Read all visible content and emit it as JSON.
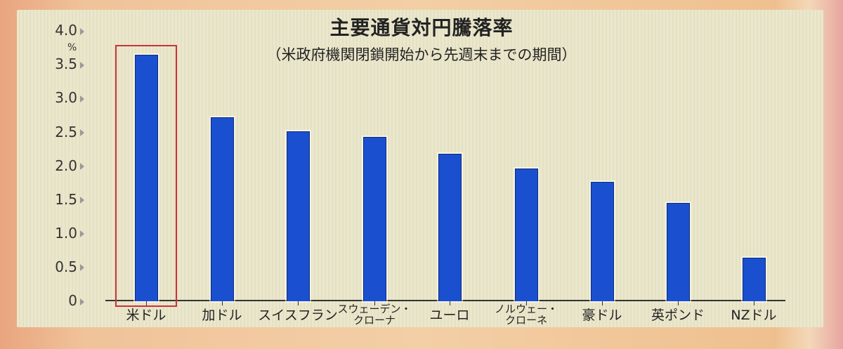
{
  "chart_data": {
    "type": "bar",
    "title": "主要通貨対円騰落率",
    "subtitle": "（米政府機関閉鎖開始から先週末までの期間）",
    "xlabel": "",
    "ylabel": "%",
    "ylim": [
      0,
      4.0
    ],
    "yticks": [
      "0",
      "0.5",
      "1.0",
      "1.5",
      "2.0",
      "2.5",
      "3.0",
      "3.5",
      "4.0"
    ],
    "grid": false,
    "categories": [
      "米ドル",
      "加ドル",
      "スイスフラン",
      "スウェーデン・クローナ",
      "ユーロ",
      "ノルウェー・クローネ",
      "豪ドル",
      "英ポンド",
      "NZドル"
    ],
    "values": [
      3.64,
      2.71,
      2.51,
      2.42,
      2.17,
      1.95,
      1.76,
      1.45,
      0.63
    ],
    "highlighted_category": "米ドル",
    "bar_color": "#1a4fd0",
    "highlight_color": "#c8323a"
  },
  "labels": {
    "title": "主要通貨対円騰落率",
    "subtitle": "（米政府機関閉鎖開始から先週末までの期間）",
    "unit": "%",
    "yticks": [
      "4.0",
      "3.5",
      "3.0",
      "2.5",
      "2.0",
      "1.5",
      "1.0",
      "0.5",
      "0"
    ],
    "x": [
      {
        "line1": "米ドル"
      },
      {
        "line1": "加ドル"
      },
      {
        "line1": "スイスフラン"
      },
      {
        "line1": "スウェーデン・",
        "line2": "クローナ"
      },
      {
        "line1": "ユーロ"
      },
      {
        "line1": "ノルウェー・",
        "line2": "クローネ"
      },
      {
        "line1": "豪ドル"
      },
      {
        "line1": "英ポンド"
      },
      {
        "line1": "NZドル"
      }
    ]
  }
}
